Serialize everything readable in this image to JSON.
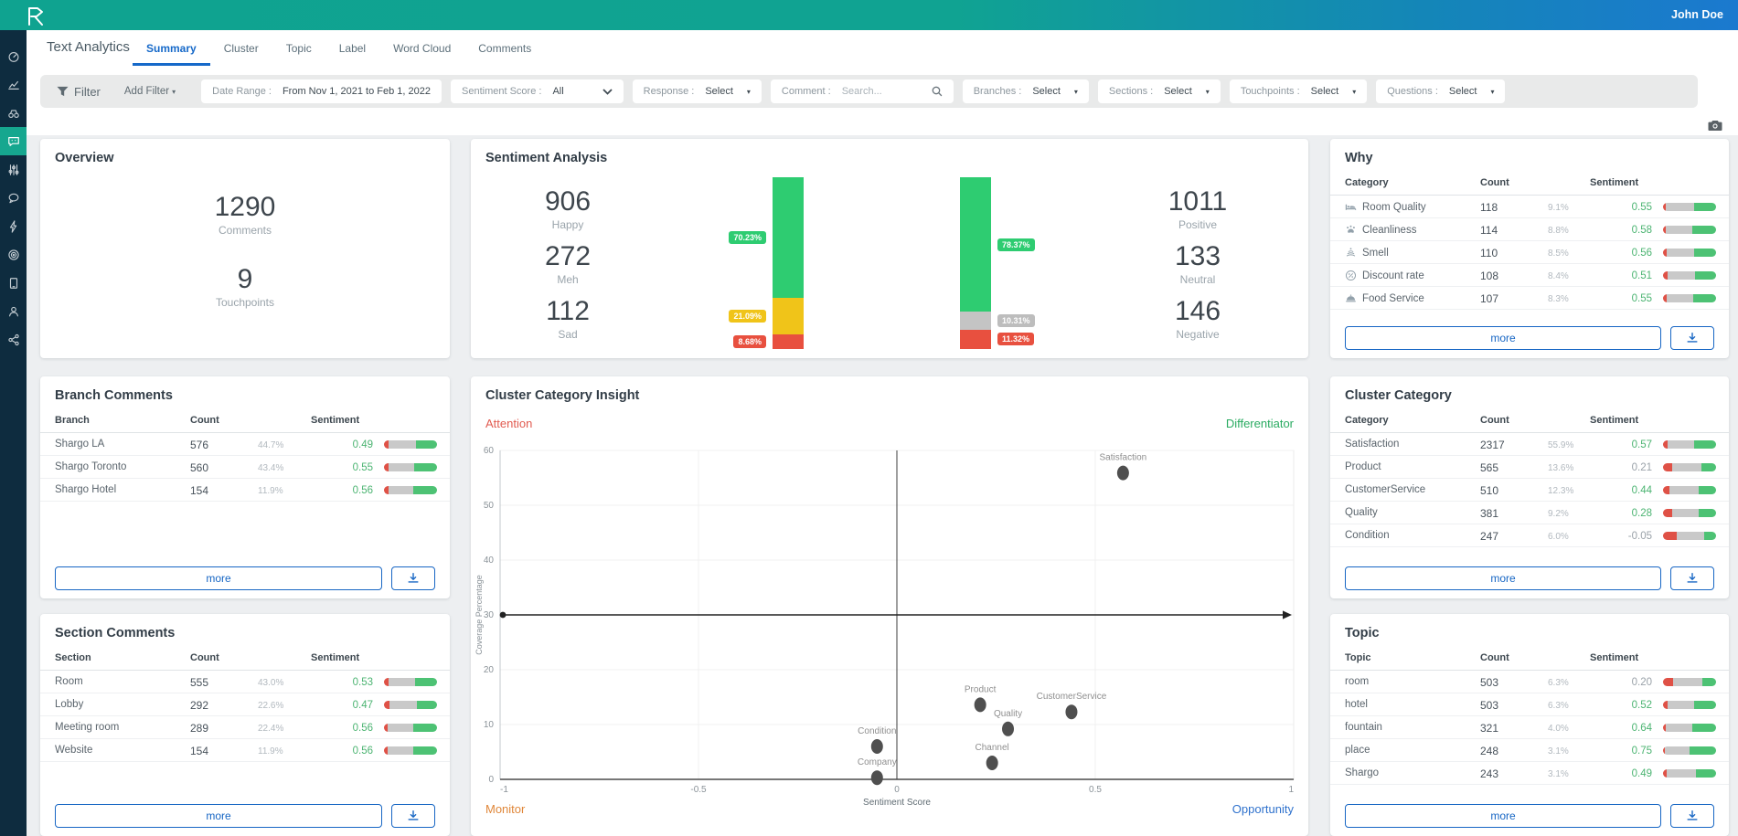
{
  "header": {
    "user": "John Doe"
  },
  "sidebar": {
    "items": [
      "dashboard",
      "trends",
      "explore",
      "text-analytics",
      "controls",
      "conversations",
      "actions",
      "goals",
      "devices",
      "users",
      "integrations"
    ],
    "active_index": 3
  },
  "tabs": {
    "title": "Text Analytics",
    "items": [
      {
        "label": "Summary",
        "active": true
      },
      {
        "label": "Cluster",
        "active": false
      },
      {
        "label": "Topic",
        "active": false
      },
      {
        "label": "Label",
        "active": false
      },
      {
        "label": "Word Cloud",
        "active": false
      },
      {
        "label": "Comments",
        "active": false
      }
    ]
  },
  "filters": {
    "filter_label": "Filter",
    "add_filter": "Add Filter",
    "chips": [
      {
        "label": "Date Range :",
        "value": "From Nov 1, 2021 to Feb 1, 2022",
        "type": "text"
      },
      {
        "label": "Sentiment Score :",
        "value": "All",
        "type": "select-wide"
      },
      {
        "label": "Response :",
        "value": "Select",
        "type": "select"
      },
      {
        "label": "Comment :",
        "value": "Search...",
        "type": "search"
      },
      {
        "label": "Branches :",
        "value": "Select",
        "type": "select"
      },
      {
        "label": "Sections :",
        "value": "Select",
        "type": "select"
      },
      {
        "label": "Touchpoints :",
        "value": "Select",
        "type": "select"
      },
      {
        "label": "Questions :",
        "value": "Select",
        "type": "select"
      }
    ]
  },
  "overview": {
    "title": "Overview",
    "stats": [
      {
        "value": "1290",
        "label": "Comments"
      },
      {
        "value": "9",
        "label": "Touchpoints"
      }
    ]
  },
  "tables": {
    "why": {
      "title": "Why",
      "columns": [
        "Category",
        "Count",
        "Sentiment"
      ],
      "more_label": "more",
      "rows": [
        {
          "icon": "bed",
          "name": "Room Quality",
          "count": "118",
          "pct": "9.1%",
          "sentiment": "0.55",
          "sentiment_color": "green",
          "bar": [
            6,
            52,
            42
          ]
        },
        {
          "icon": "clean",
          "name": "Cleanliness",
          "count": "114",
          "pct": "8.8%",
          "sentiment": "0.58",
          "sentiment_color": "green",
          "bar": [
            6,
            50,
            44
          ]
        },
        {
          "icon": "smell",
          "name": "Smell",
          "count": "110",
          "pct": "8.5%",
          "sentiment": "0.56",
          "sentiment_color": "green",
          "bar": [
            7,
            51,
            42
          ]
        },
        {
          "icon": "discount",
          "name": "Discount rate",
          "count": "108",
          "pct": "8.4%",
          "sentiment": "0.51",
          "sentiment_color": "green",
          "bar": [
            8,
            52,
            40
          ]
        },
        {
          "icon": "food",
          "name": "Food Service",
          "count": "107",
          "pct": "8.3%",
          "sentiment": "0.55",
          "sentiment_color": "green",
          "bar": [
            7,
            50,
            43
          ]
        }
      ]
    },
    "branch": {
      "title": "Branch Comments",
      "columns": [
        "Branch",
        "Count",
        "Sentiment"
      ],
      "more_label": "more",
      "rows": [
        {
          "name": "Shargo LA",
          "count": "576",
          "pct": "44.7%",
          "sentiment": "0.49",
          "sentiment_color": "green",
          "bar": [
            9,
            51,
            40
          ]
        },
        {
          "name": "Shargo Toronto",
          "count": "560",
          "pct": "43.4%",
          "sentiment": "0.55",
          "sentiment_color": "green",
          "bar": [
            8,
            49,
            43
          ]
        },
        {
          "name": "Shargo Hotel",
          "count": "154",
          "pct": "11.9%",
          "sentiment": "0.56",
          "sentiment_color": "green",
          "bar": [
            8,
            48,
            44
          ]
        }
      ]
    },
    "cluster": {
      "title": "Cluster Category",
      "columns": [
        "Category",
        "Count",
        "Sentiment"
      ],
      "more_label": "more",
      "rows": [
        {
          "name": "Satisfaction",
          "count": "2317",
          "pct": "55.9%",
          "sentiment": "0.57",
          "sentiment_color": "green",
          "bar": [
            9,
            49,
            42
          ]
        },
        {
          "name": "Product",
          "count": "565",
          "pct": "13.6%",
          "sentiment": "0.21",
          "sentiment_color": "gray",
          "bar": [
            17,
            56,
            27
          ]
        },
        {
          "name": "CustomerService",
          "count": "510",
          "pct": "12.3%",
          "sentiment": "0.44",
          "sentiment_color": "green",
          "bar": [
            12,
            55,
            33
          ]
        },
        {
          "name": "Quality",
          "count": "381",
          "pct": "9.2%",
          "sentiment": "0.28",
          "sentiment_color": "green",
          "bar": [
            17,
            50,
            33
          ]
        },
        {
          "name": "Condition",
          "count": "247",
          "pct": "6.0%",
          "sentiment": "-0.05",
          "sentiment_color": "gray",
          "bar": [
            26,
            52,
            22
          ]
        }
      ]
    },
    "section": {
      "title": "Section Comments",
      "columns": [
        "Section",
        "Count",
        "Sentiment"
      ],
      "more_label": "more",
      "rows": [
        {
          "name": "Room",
          "count": "555",
          "pct": "43.0%",
          "sentiment": "0.53",
          "sentiment_color": "green",
          "bar": [
            8,
            50,
            42
          ]
        },
        {
          "name": "Lobby",
          "count": "292",
          "pct": "22.6%",
          "sentiment": "0.47",
          "sentiment_color": "green",
          "bar": [
            10,
            52,
            38
          ]
        },
        {
          "name": "Meeting room",
          "count": "289",
          "pct": "22.4%",
          "sentiment": "0.56",
          "sentiment_color": "green",
          "bar": [
            7,
            49,
            44
          ]
        },
        {
          "name": "Website",
          "count": "154",
          "pct": "11.9%",
          "sentiment": "0.56",
          "sentiment_color": "green",
          "bar": [
            7,
            49,
            44
          ]
        }
      ]
    },
    "topic": {
      "title": "Topic",
      "columns": [
        "Topic",
        "Count",
        "Sentiment"
      ],
      "more_label": "more",
      "rows": [
        {
          "name": "room",
          "count": "503",
          "pct": "6.3%",
          "sentiment": "0.20",
          "sentiment_color": "gray",
          "bar": [
            19,
            56,
            25
          ]
        },
        {
          "name": "hotel",
          "count": "503",
          "pct": "6.3%",
          "sentiment": "0.52",
          "sentiment_color": "green",
          "bar": [
            8,
            50,
            42
          ]
        },
        {
          "name": "fountain",
          "count": "321",
          "pct": "4.0%",
          "sentiment": "0.64",
          "sentiment_color": "green",
          "bar": [
            5,
            50,
            45
          ]
        },
        {
          "name": "place",
          "count": "248",
          "pct": "3.1%",
          "sentiment": "0.75",
          "sentiment_color": "green",
          "bar": [
            4,
            46,
            50
          ]
        },
        {
          "name": "Shargo",
          "count": "243",
          "pct": "3.1%",
          "sentiment": "0.49",
          "sentiment_color": "green",
          "bar": [
            7,
            55,
            38
          ]
        }
      ]
    }
  },
  "chart_data": [
    {
      "id": "sentiment-stacked-bars",
      "type": "bar",
      "title": "Sentiment Analysis",
      "left_stats": [
        {
          "value": "906",
          "label": "Happy"
        },
        {
          "value": "272",
          "label": "Meh"
        },
        {
          "value": "112",
          "label": "Sad"
        }
      ],
      "right_stats": [
        {
          "value": "1011",
          "label": "Positive"
        },
        {
          "value": "133",
          "label": "Neutral"
        },
        {
          "value": "146",
          "label": "Negative"
        }
      ],
      "bars": [
        {
          "name": "mood-bar",
          "badge_side": "left",
          "segments": [
            {
              "label": "70.23%",
              "value": 70.23,
              "color": "#2ecc71"
            },
            {
              "label": "21.09%",
              "value": 21.09,
              "color": "#f0c419"
            },
            {
              "label": "8.68%",
              "value": 8.68,
              "color": "#e8503f"
            }
          ]
        },
        {
          "name": "polarity-bar",
          "badge_side": "right",
          "segments": [
            {
              "label": "78.37%",
              "value": 78.37,
              "color": "#2ecc71"
            },
            {
              "label": "10.31%",
              "value": 10.31,
              "color": "#c4c4c4"
            },
            {
              "label": "11.32%",
              "value": 11.32,
              "color": "#e8503f"
            }
          ]
        }
      ]
    },
    {
      "id": "cluster-category-insight",
      "type": "scatter",
      "title": "Cluster Category Insight",
      "xlabel": "Sentiment Score",
      "ylabel": "Coverage Percentage",
      "xlim": [
        -1,
        1
      ],
      "ylim": [
        0,
        60
      ],
      "xticks": [
        "-1",
        "-0.5",
        "0",
        "0.5",
        "1"
      ],
      "xtick_values": [
        -1,
        -0.5,
        0,
        0.5,
        1
      ],
      "yticks": [
        0,
        10,
        20,
        30,
        40,
        50,
        60
      ],
      "grid": true,
      "quadrant_divider": {
        "x": 0,
        "y": 30
      },
      "quadrants": [
        {
          "label": "Attention",
          "color": "#e15b50",
          "pos": "top-left"
        },
        {
          "label": "Differentiator",
          "color": "#2aab61",
          "pos": "top-right"
        },
        {
          "label": "Monitor",
          "color": "#e0873a",
          "pos": "bottom-left"
        },
        {
          "label": "Opportunity",
          "color": "#2f72cd",
          "pos": "bottom-right"
        }
      ],
      "points": [
        {
          "label": "Satisfaction",
          "x": 0.57,
          "y": 55.9
        },
        {
          "label": "Product",
          "x": 0.21,
          "y": 13.6
        },
        {
          "label": "CustomerService",
          "x": 0.44,
          "y": 12.3
        },
        {
          "label": "Quality",
          "x": 0.28,
          "y": 9.2
        },
        {
          "label": "Condition",
          "x": -0.05,
          "y": 6.0
        },
        {
          "label": "Channel",
          "x": 0.24,
          "y": 3.0
        },
        {
          "label": "Company",
          "x": -0.05,
          "y": 0.3
        }
      ]
    }
  ]
}
